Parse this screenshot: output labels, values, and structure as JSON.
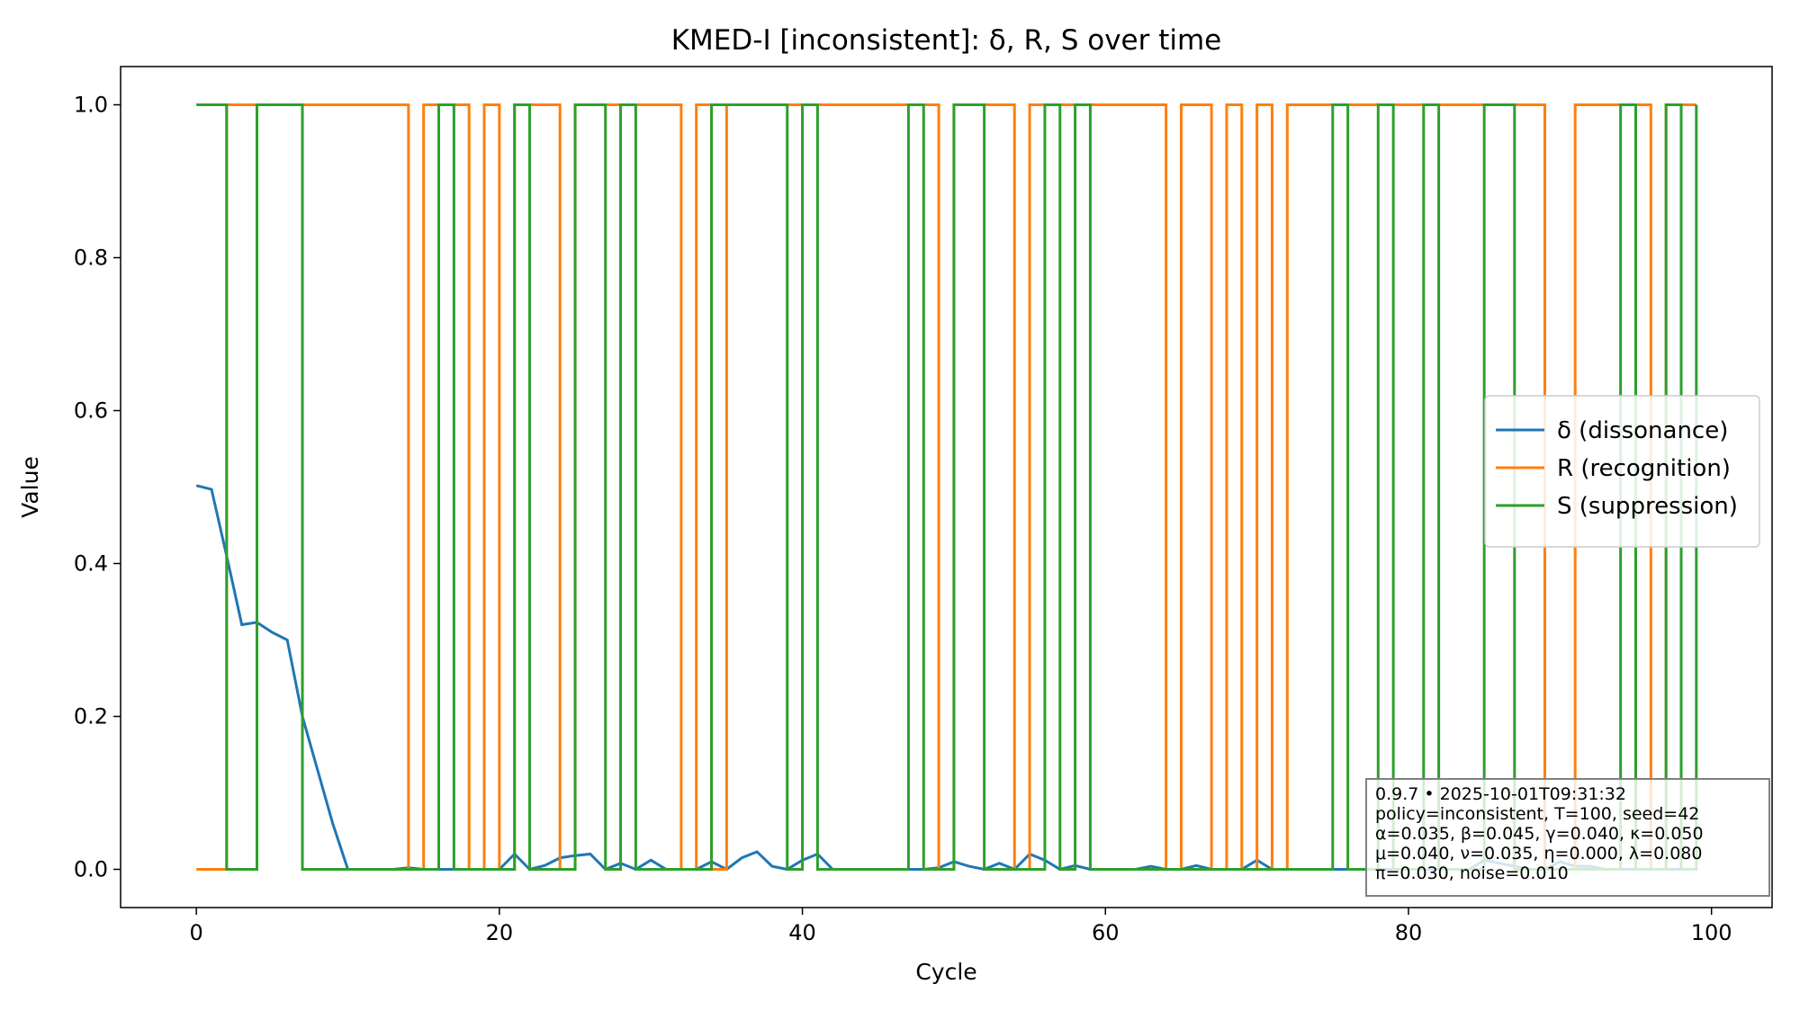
{
  "chart_data": {
    "type": "line",
    "title": "KMED-I [inconsistent]: δ, R, S over time",
    "xlabel": "Cycle",
    "ylabel": "Value",
    "xlim": [
      -5,
      104
    ],
    "ylim": [
      -0.05,
      1.05
    ],
    "xticks": [
      0,
      20,
      40,
      60,
      80,
      100
    ],
    "yticks": [
      0.0,
      0.2,
      0.4,
      0.6,
      0.8,
      1.0
    ],
    "xtick_labels": [
      "0",
      "20",
      "40",
      "60",
      "80",
      "100"
    ],
    "ytick_labels": [
      "0.0",
      "0.2",
      "0.4",
      "0.6",
      "0.8",
      "1.0"
    ],
    "legend_position": "center-right",
    "grid": false,
    "series": [
      {
        "name": "δ (dissonance)",
        "color": "#1f77b4",
        "step": false,
        "x": [
          0,
          1,
          2,
          3,
          4,
          5,
          6,
          7,
          8,
          9,
          10,
          11,
          12,
          13,
          14,
          15,
          16,
          17,
          18,
          19,
          20,
          21,
          22,
          23,
          24,
          25,
          26,
          27,
          28,
          29,
          30,
          31,
          32,
          33,
          34,
          35,
          36,
          37,
          38,
          39,
          40,
          41,
          42,
          43,
          44,
          45,
          46,
          47,
          48,
          49,
          50,
          51,
          52,
          53,
          54,
          55,
          56,
          57,
          58,
          59,
          60,
          61,
          62,
          63,
          64,
          65,
          66,
          67,
          68,
          69,
          70,
          71,
          72,
          73,
          74,
          75,
          76,
          77,
          78,
          79,
          80,
          81,
          82,
          83,
          84,
          85,
          86,
          87,
          88,
          89,
          90,
          91,
          92,
          93,
          94,
          95,
          96,
          97,
          98,
          99
        ],
        "values": [
          0.502,
          0.497,
          0.41,
          0.32,
          0.323,
          0.31,
          0.3,
          0.2,
          0.13,
          0.06,
          0,
          0,
          0,
          0,
          0.002,
          0,
          0,
          0,
          0,
          0,
          0,
          0.02,
          0,
          0.005,
          0.015,
          0.018,
          0.02,
          0,
          0.008,
          0,
          0.012,
          0,
          0,
          0,
          0.01,
          0,
          0.015,
          0.023,
          0.004,
          0,
          0.012,
          0.02,
          0,
          0,
          0,
          0,
          0,
          0,
          0,
          0.002,
          0.01,
          0.004,
          0,
          0.008,
          0,
          0.02,
          0.012,
          0,
          0.005,
          0,
          0,
          0,
          0,
          0.004,
          0,
          0,
          0.005,
          0,
          0,
          0,
          0.012,
          0,
          0,
          0,
          0,
          0,
          0,
          0,
          0,
          0,
          0,
          0,
          0,
          0,
          0,
          0.012,
          0.008,
          0.004,
          0,
          0,
          0.01,
          0.004,
          0.004,
          0,
          0,
          0,
          0,
          0,
          0,
          0
        ]
      },
      {
        "name": "R (recognition)",
        "color": "#ff7f0e",
        "step": true,
        "x": [
          0,
          1,
          2,
          3,
          4,
          5,
          6,
          7,
          8,
          9,
          10,
          11,
          12,
          13,
          14,
          15,
          16,
          17,
          18,
          19,
          20,
          21,
          22,
          23,
          24,
          25,
          26,
          27,
          28,
          29,
          30,
          31,
          32,
          33,
          34,
          35,
          36,
          37,
          38,
          39,
          40,
          41,
          42,
          43,
          44,
          45,
          46,
          47,
          48,
          49,
          50,
          51,
          52,
          53,
          54,
          55,
          56,
          57,
          58,
          59,
          60,
          61,
          62,
          63,
          64,
          65,
          66,
          67,
          68,
          69,
          70,
          71,
          72,
          73,
          74,
          75,
          76,
          77,
          78,
          79,
          80,
          81,
          82,
          83,
          84,
          85,
          86,
          87,
          88,
          89,
          90,
          91,
          92,
          93,
          94,
          95,
          96,
          97,
          98,
          99
        ],
        "values": [
          0,
          0,
          1,
          1,
          1,
          1,
          1,
          1,
          1,
          1,
          1,
          1,
          1,
          1,
          0,
          1,
          1,
          1,
          0,
          1,
          0,
          1,
          1,
          1,
          0,
          1,
          1,
          1,
          1,
          1,
          1,
          1,
          0,
          1,
          0,
          1,
          1,
          1,
          1,
          1,
          1,
          1,
          1,
          1,
          1,
          1,
          1,
          1,
          1,
          0,
          1,
          1,
          1,
          1,
          0,
          1,
          1,
          1,
          1,
          1,
          1,
          1,
          1,
          1,
          0,
          1,
          1,
          0,
          1,
          0,
          1,
          0,
          1,
          1,
          1,
          1,
          1,
          1,
          1,
          1,
          1,
          1,
          1,
          1,
          1,
          1,
          1,
          1,
          1,
          0,
          0,
          1,
          1,
          1,
          1,
          1,
          0,
          1,
          1,
          1
        ]
      },
      {
        "name": "S (suppression)",
        "color": "#2ca02c",
        "step": true,
        "x": [
          0,
          1,
          2,
          3,
          4,
          5,
          6,
          7,
          8,
          9,
          10,
          11,
          12,
          13,
          14,
          15,
          16,
          17,
          18,
          19,
          20,
          21,
          22,
          23,
          24,
          25,
          26,
          27,
          28,
          29,
          30,
          31,
          32,
          33,
          34,
          35,
          36,
          37,
          38,
          39,
          40,
          41,
          42,
          43,
          44,
          45,
          46,
          47,
          48,
          49,
          50,
          51,
          52,
          53,
          54,
          55,
          56,
          57,
          58,
          59,
          60,
          61,
          62,
          63,
          64,
          65,
          66,
          67,
          68,
          69,
          70,
          71,
          72,
          73,
          74,
          75,
          76,
          77,
          78,
          79,
          80,
          81,
          82,
          83,
          84,
          85,
          86,
          87,
          88,
          89,
          90,
          91,
          92,
          93,
          94,
          95,
          96,
          97,
          98,
          99
        ],
        "values": [
          1,
          1,
          0,
          0,
          1,
          1,
          1,
          0,
          0,
          0,
          0,
          0,
          0,
          0,
          0,
          0,
          1,
          0,
          0,
          0,
          0,
          1,
          0,
          0,
          0,
          1,
          1,
          0,
          1,
          0,
          0,
          0,
          0,
          0,
          1,
          1,
          1,
          1,
          1,
          0,
          1,
          0,
          0,
          0,
          0,
          0,
          0,
          1,
          0,
          0,
          1,
          1,
          0,
          0,
          0,
          0,
          1,
          0,
          1,
          0,
          0,
          0,
          0,
          0,
          0,
          0,
          0,
          0,
          0,
          0,
          0,
          0,
          0,
          0,
          0,
          1,
          0,
          0,
          1,
          0,
          0,
          1,
          0,
          0,
          0,
          1,
          1,
          0,
          0,
          0,
          0,
          0,
          0,
          0,
          1,
          0,
          0,
          1,
          0,
          1
        ]
      }
    ],
    "annotation_lines": [
      "0.9.7  •  2025-10-01T09:31:32",
      "policy=inconsistent, T=100, seed=42",
      "α=0.035, β=0.045, γ=0.040, κ=0.050",
      "μ=0.040, ν=0.035, η=0.000, λ=0.080",
      "π=0.030, noise=0.010"
    ]
  }
}
